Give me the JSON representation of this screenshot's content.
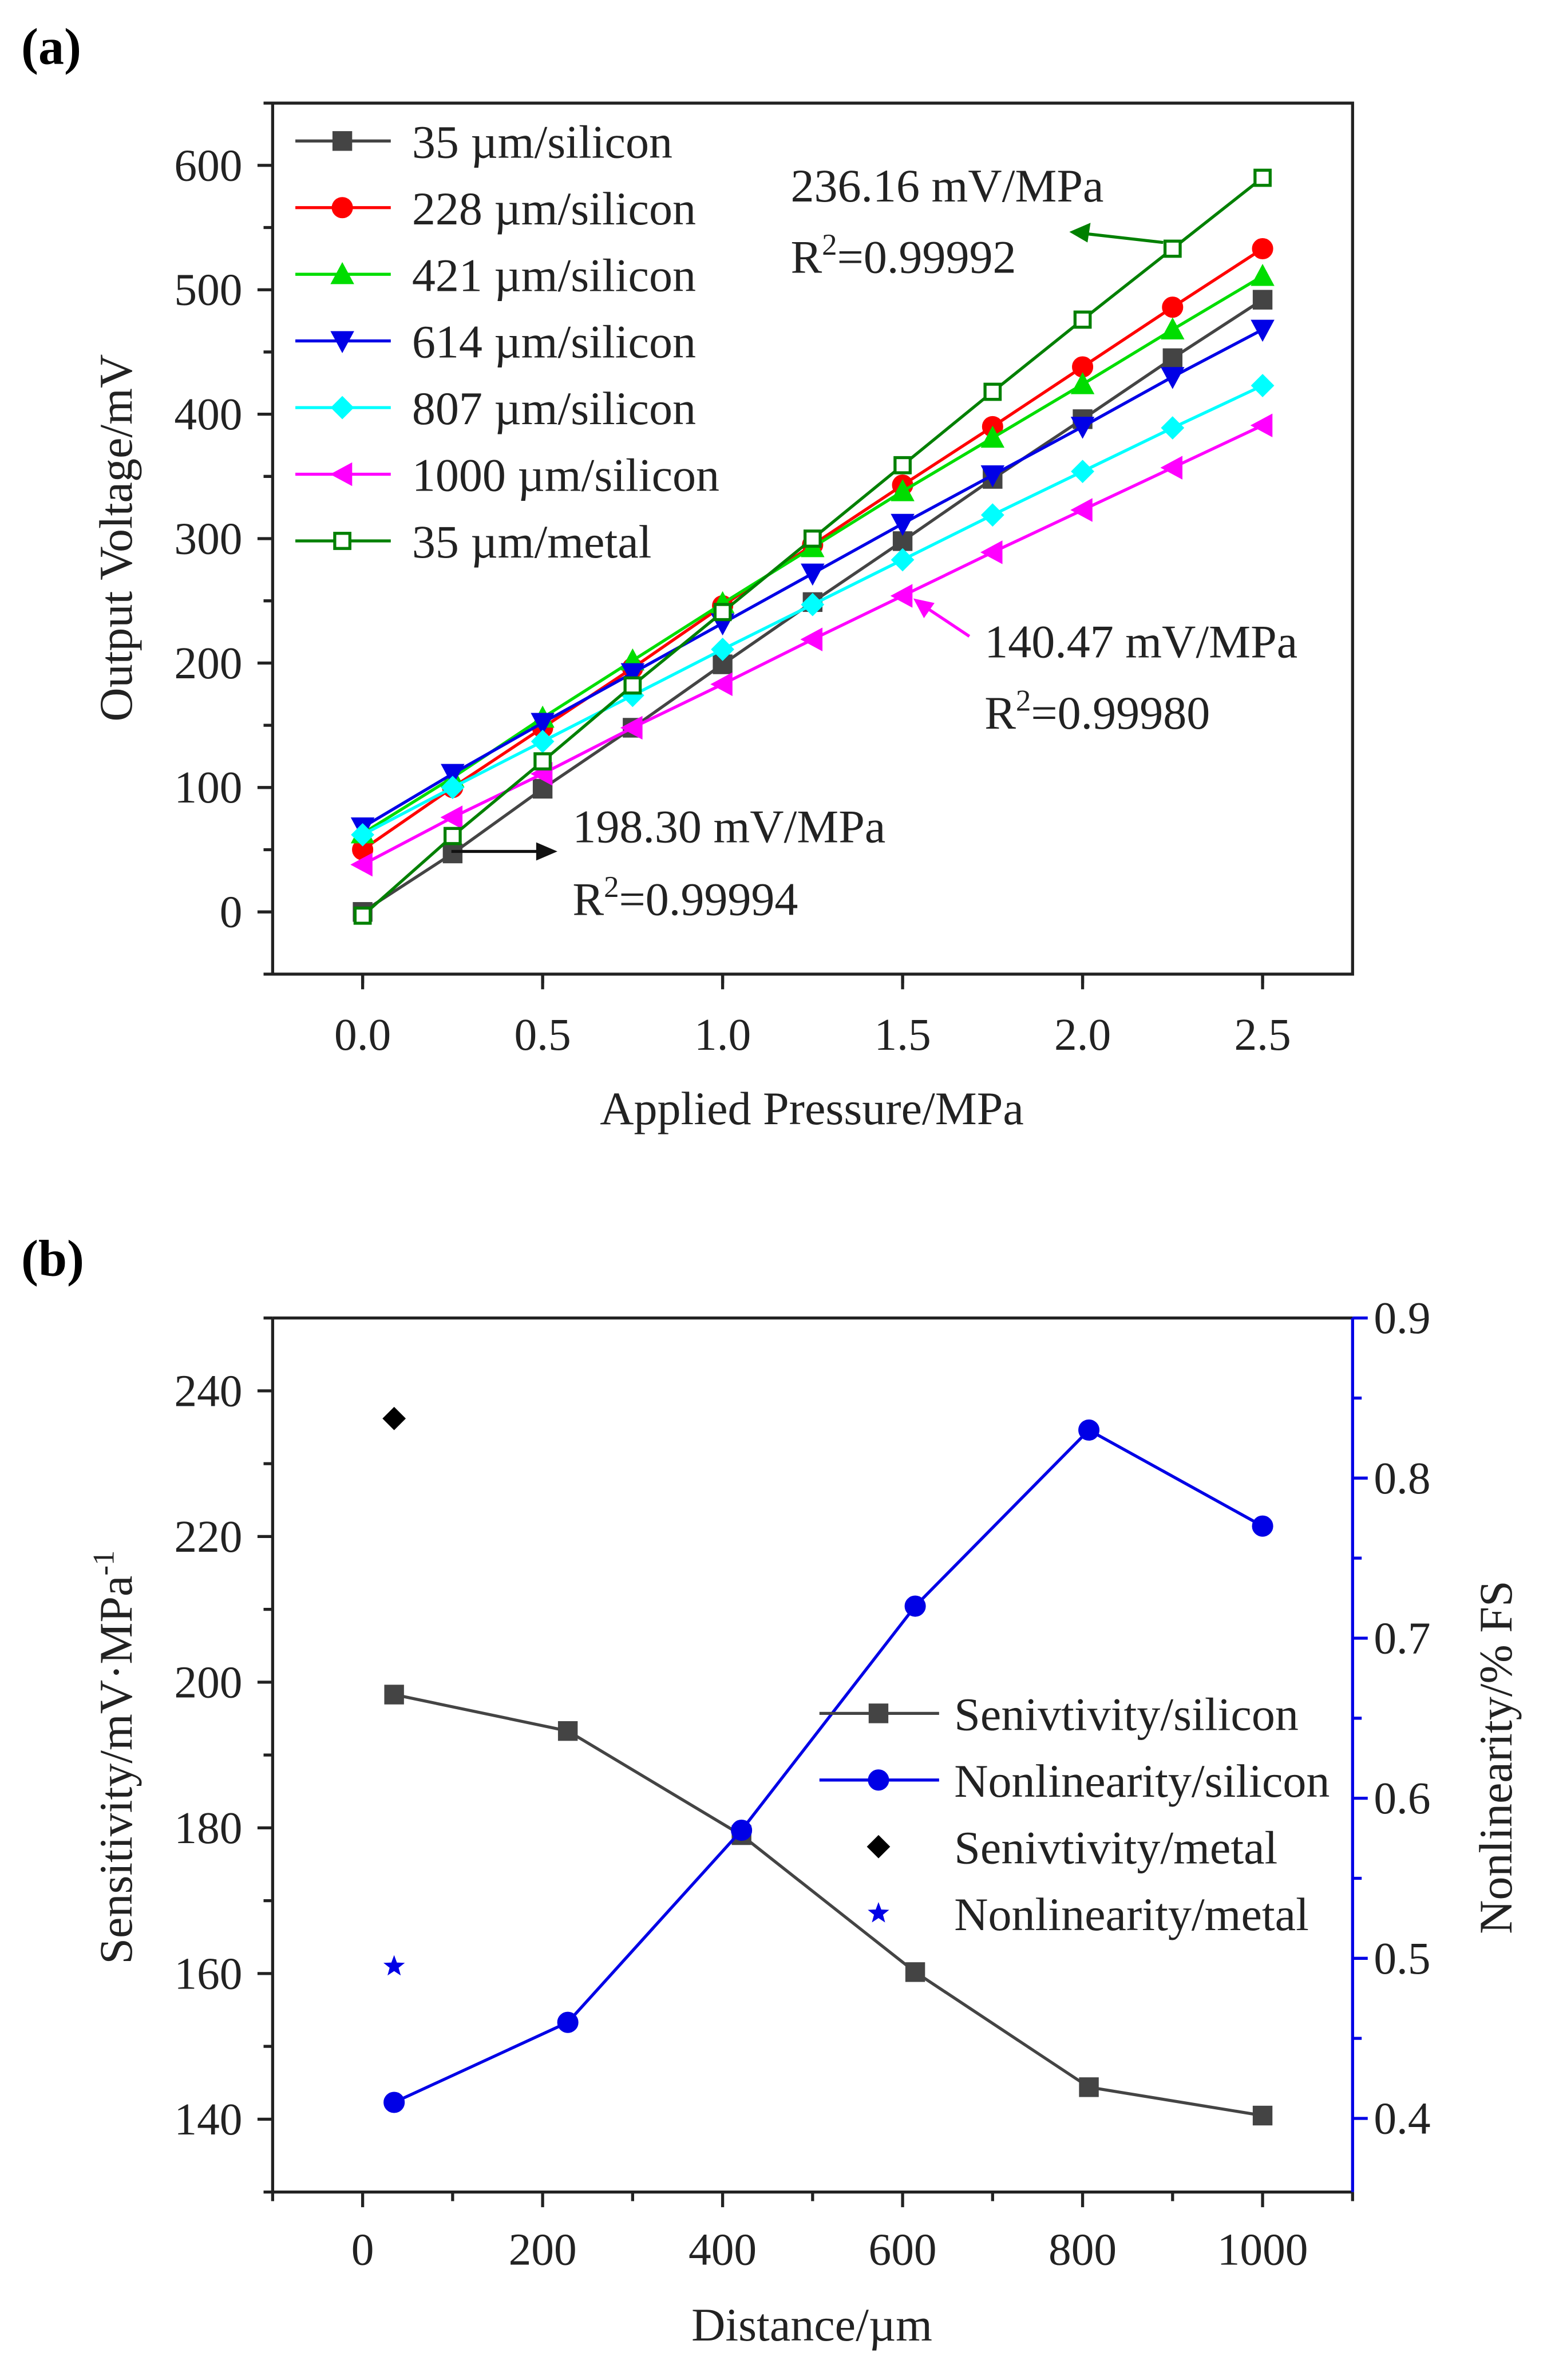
{
  "chart_data": [
    {
      "type": "line",
      "panel_label": "(a)",
      "xlabel": "Applied Pressure/MPa",
      "ylabel": "Output Voltage/mV",
      "xlim": [
        -0.25,
        2.75
      ],
      "ylim": [
        -50,
        650
      ],
      "xticks": [
        0.0,
        0.5,
        1.0,
        1.5,
        2.0,
        2.5
      ],
      "xtick_labels": [
        "0.0",
        "0.5",
        "1.0",
        "1.5",
        "2.0",
        "2.5"
      ],
      "yticks": [
        0,
        100,
        200,
        300,
        400,
        500,
        600
      ],
      "ytick_labels": [
        "0",
        "100",
        "200",
        "300",
        "400",
        "500",
        "600"
      ],
      "legend_position": "top-left",
      "x": [
        0,
        0.25,
        0.5,
        0.75,
        1.0,
        1.25,
        1.5,
        1.75,
        2.0,
        2.25,
        2.5
      ],
      "series": [
        {
          "name": "35 µm/silicon",
          "color": "#444444",
          "marker": "square",
          "values": [
            0,
            47,
            99,
            148,
            199,
            249,
            298,
            348,
            396,
            445,
            492
          ]
        },
        {
          "name": "228 µm/silicon",
          "color": "#ff0000",
          "marker": "circle",
          "values": [
            50,
            100,
            148,
            196,
            246,
            295,
            343,
            390,
            438,
            486,
            533
          ]
        },
        {
          "name": "421 µm/silicon",
          "color": "#00dd00",
          "marker": "triangle-up",
          "values": [
            63,
            108,
            156,
            202,
            248,
            293,
            338,
            381,
            424,
            468,
            511
          ]
        },
        {
          "name": "614 µm/silicon",
          "color": "#0000e6",
          "marker": "triangle-down",
          "values": [
            68,
            111,
            152,
            192,
            232,
            272,
            312,
            351,
            390,
            430,
            468
          ]
        },
        {
          "name": "807 µm/silicon",
          "color": "#00ffff",
          "marker": "diamond",
          "values": [
            62,
            100,
            137,
            174,
            211,
            247,
            283,
            319,
            354,
            389,
            423
          ]
        },
        {
          "name": "1000 µm/silicon",
          "color": "#ff00ff",
          "marker": "triangle-left",
          "values": [
            38,
            76,
            111,
            148,
            183,
            219,
            254,
            289,
            323,
            357,
            391
          ]
        },
        {
          "name": "35 µm/metal",
          "color": "#008000",
          "marker": "open-square",
          "values": [
            -3,
            61,
            121,
            182,
            241,
            300,
            359,
            418,
            476,
            533,
            590
          ]
        }
      ],
      "annotations": [
        {
          "slope": "236.16 mV/MPa",
          "r2": "=0.99992",
          "color": "#008000"
        },
        {
          "slope": "140.47 mV/MPa",
          "r2": "=0.99980",
          "color": "#ff00ff"
        },
        {
          "slope": "198.30 mV/MPa",
          "r2": "=0.99994",
          "color": "#111111"
        }
      ],
      "r_letter": "R",
      "r_sup": "2"
    },
    {
      "type": "line",
      "panel_label": "(b)",
      "xlabel": "Distance/µm",
      "ylabel": "Sensitivity/mV·MPa",
      "ylabel_sup": "-1",
      "y2label": "Nonlinearity/% FS",
      "xlim": [
        -100,
        1100
      ],
      "ylim": [
        130,
        250
      ],
      "y2lim": [
        0.354,
        0.9
      ],
      "xticks": [
        0,
        200,
        400,
        600,
        800,
        1000
      ],
      "xtick_labels": [
        "0",
        "200",
        "400",
        "600",
        "800",
        "1000"
      ],
      "yticks": [
        140,
        160,
        180,
        200,
        220,
        240
      ],
      "ytick_labels": [
        "140",
        "160",
        "180",
        "200",
        "220",
        "240"
      ],
      "y2ticks": [
        0.4,
        0.5,
        0.6,
        0.7,
        0.8,
        0.9
      ],
      "y2tick_labels": [
        "0.4",
        "0.5",
        "0.6",
        "0.7",
        "0.8",
        "0.9"
      ],
      "legend_position": "center-right",
      "series": [
        {
          "name": "Senivtivity/silicon",
          "axis": "left",
          "color": "#444444",
          "marker": "square",
          "line": true,
          "x": [
            35,
            228,
            421,
            614,
            807,
            1000
          ],
          "values": [
            198.3,
            193.3,
            179.0,
            160.2,
            144.4,
            140.5
          ]
        },
        {
          "name": "Nonlinearity/silicon",
          "axis": "right",
          "color": "#0000e6",
          "marker": "circle",
          "line": true,
          "x": [
            35,
            228,
            421,
            614,
            807,
            1000
          ],
          "values": [
            0.41,
            0.46,
            0.58,
            0.72,
            0.83,
            0.77
          ]
        },
        {
          "name": "Senivtivity/metal",
          "axis": "left",
          "color": "#000000",
          "marker": "diamond",
          "line": false,
          "x": [
            35
          ],
          "values": [
            236.2
          ]
        },
        {
          "name": "Nonlinearity/metal",
          "axis": "right",
          "color": "#0000e6",
          "marker": "star",
          "line": false,
          "x": [
            35
          ],
          "values": [
            0.495
          ]
        }
      ]
    }
  ]
}
